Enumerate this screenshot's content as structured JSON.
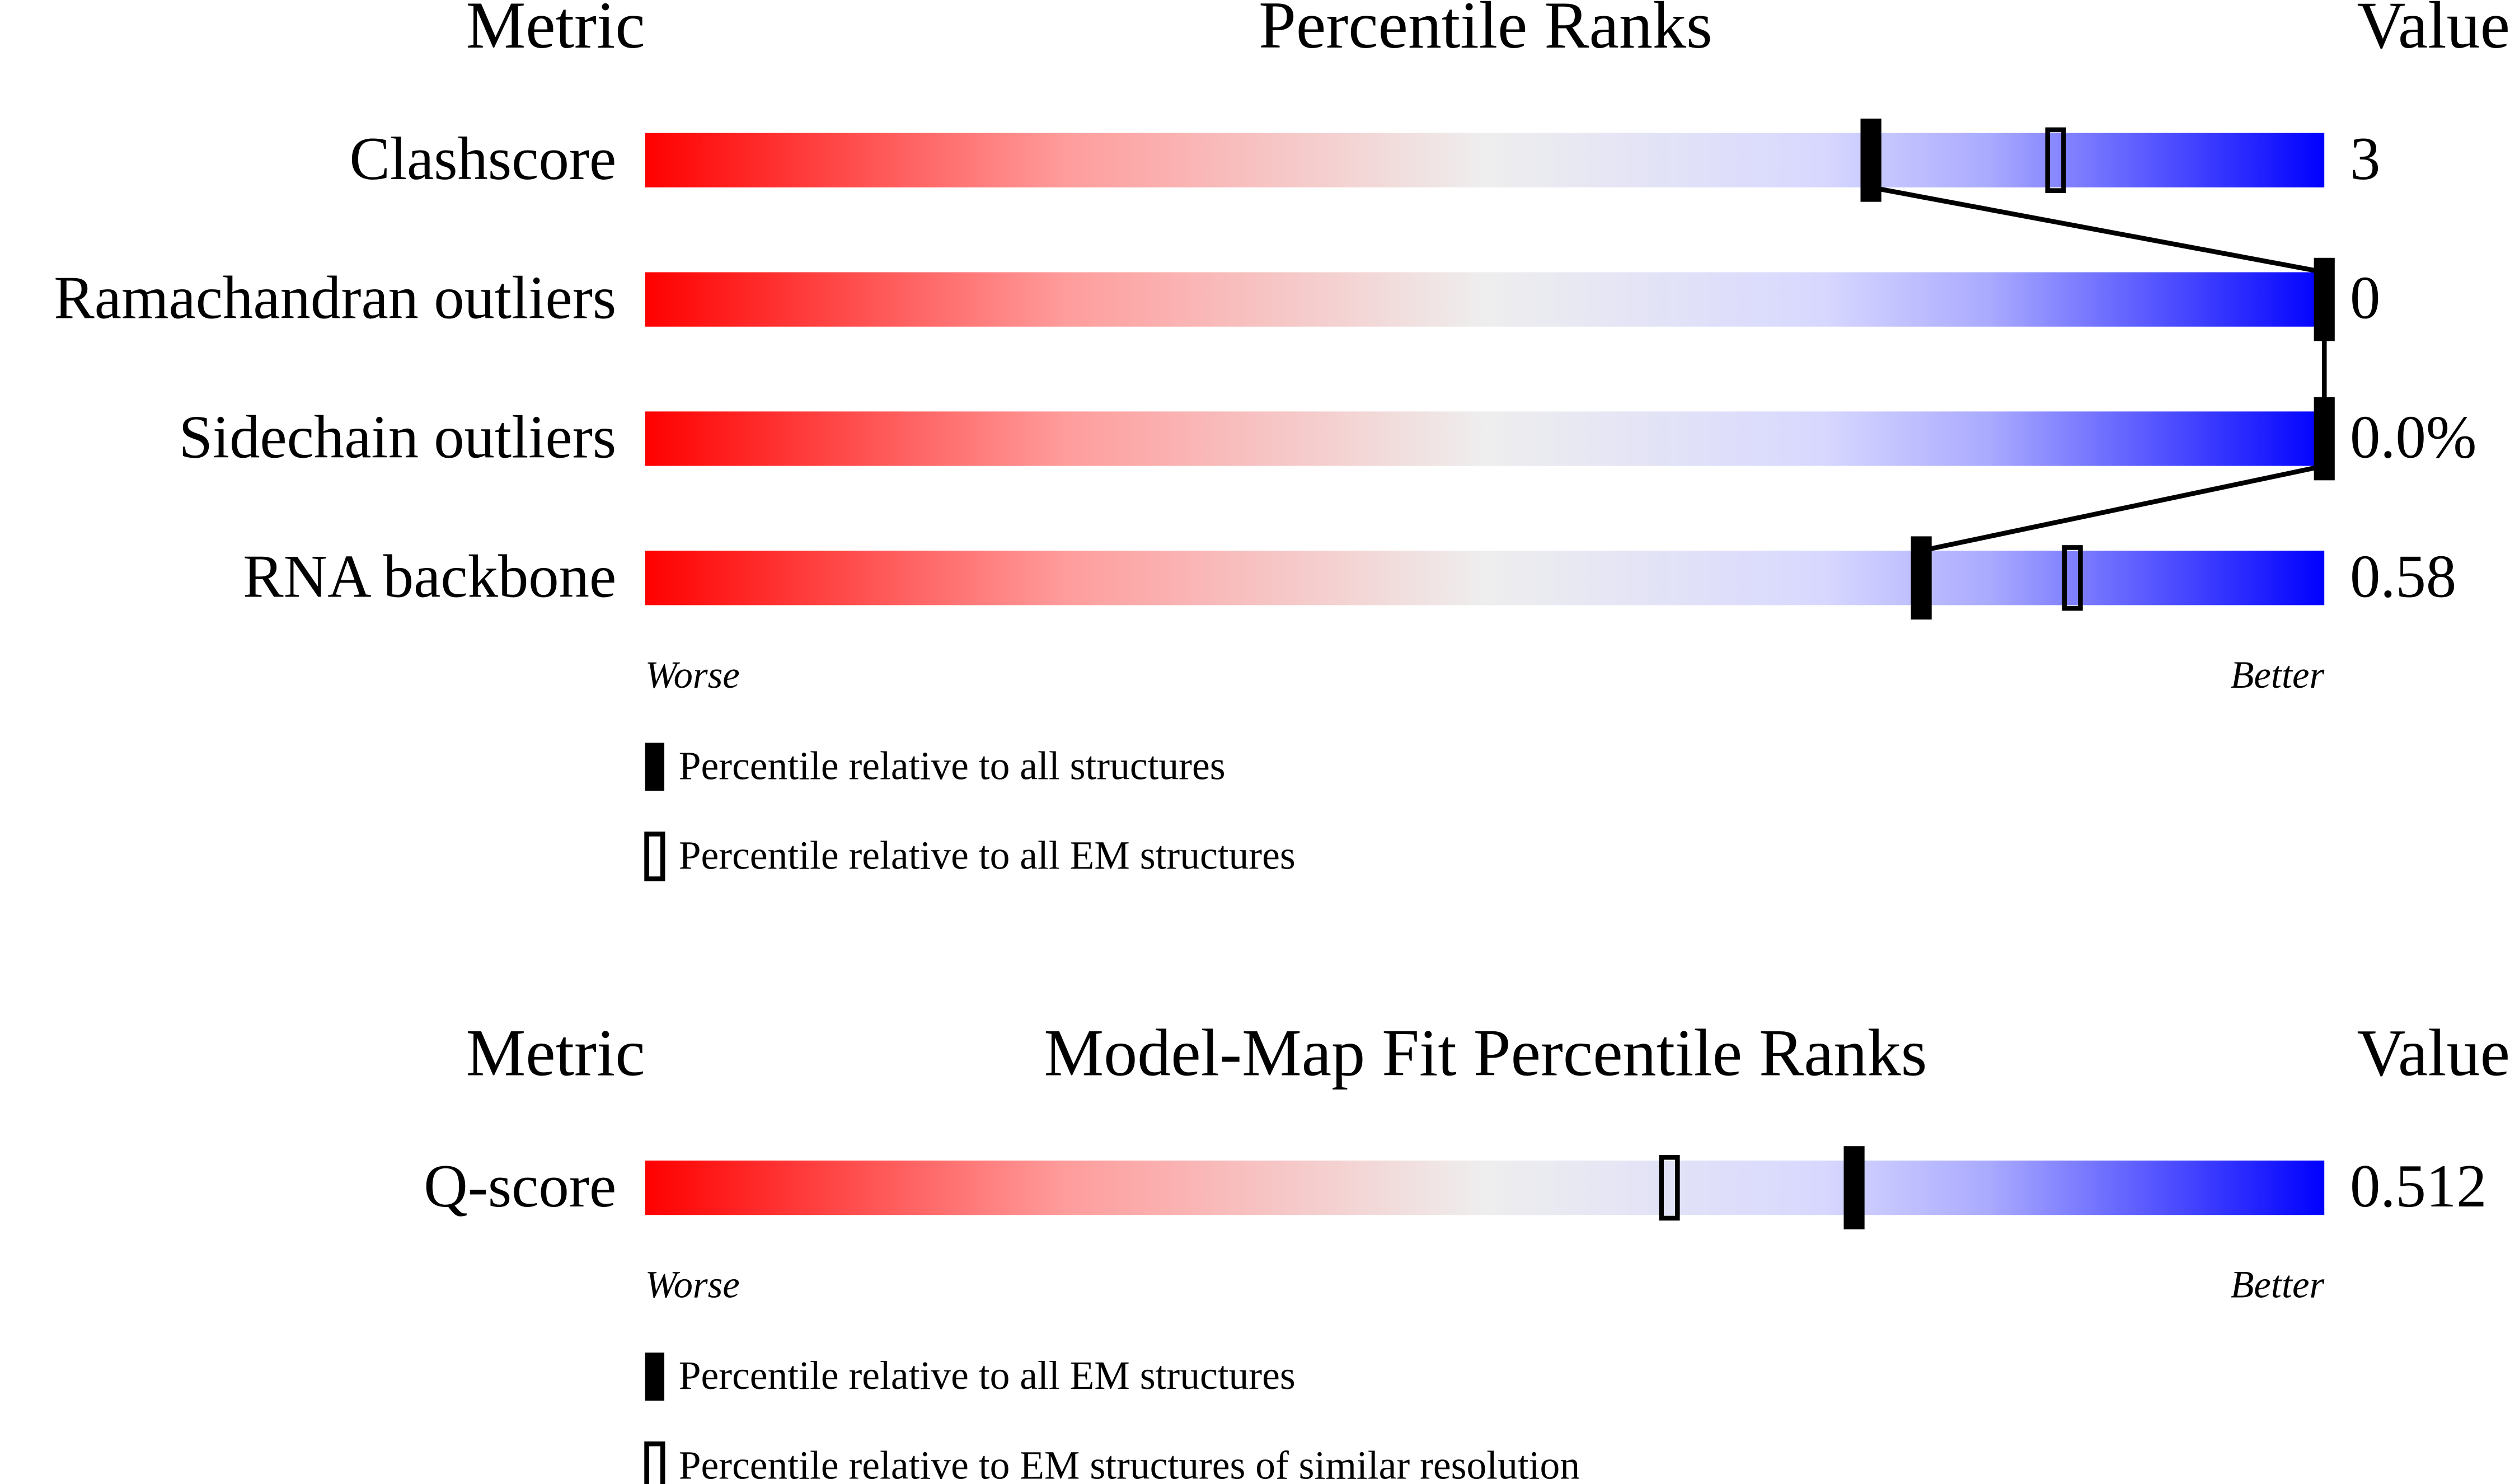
{
  "xlim": [
    0,
    100
  ],
  "panels": [
    {
      "header": {
        "metric": "Metric",
        "title": "Percentile Ranks",
        "value": "Value"
      },
      "rows": [
        {
          "metric": "Clashscore",
          "value": "3",
          "percentiles": [
            73,
            84
          ]
        },
        {
          "metric": "Ramachandran outliers",
          "value": "0",
          "percentiles": [
            100
          ]
        },
        {
          "metric": "Sidechain outliers",
          "value": "0.0%",
          "percentiles": [
            100
          ]
        },
        {
          "metric": "RNA backbone",
          "value": "0.58",
          "percentiles": [
            76,
            85
          ]
        }
      ],
      "worse": "Worse",
      "better": "Better",
      "legend": [
        "Percentile relative to all structures",
        "Percentile relative to all EM structures"
      ]
    },
    {
      "header": {
        "metric": "Metric",
        "title": "Model-Map Fit Percentile Ranks",
        "value": "Value"
      },
      "rows": [
        {
          "metric": "Q-score",
          "value": "0.512",
          "percentiles": [
            72,
            61
          ]
        }
      ],
      "worse": "Worse",
      "better": "Better",
      "legend": [
        "Percentile relative to all EM structures",
        "Percentile relative to EM structures of similar resolution"
      ]
    }
  ]
}
